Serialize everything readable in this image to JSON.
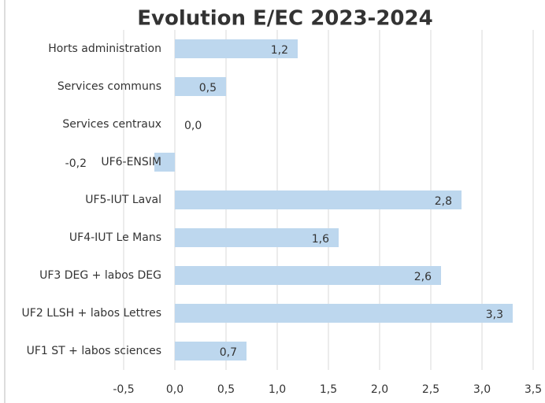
{
  "chart_data": {
    "type": "barh",
    "title": "Evolution E/EC 2023-2024",
    "categories": [
      "Horts administration",
      "Services communs",
      "Services centraux",
      "UF6-ENSIM",
      "UF5-IUT Laval",
      "UF4-IUT Le Mans",
      "UF3 DEG + labos DEG",
      "UF2 LLSH + labos Lettres",
      "UF1 ST + labos sciences"
    ],
    "values": [
      1.2,
      0.5,
      0.0,
      -0.2,
      2.8,
      1.6,
      2.6,
      3.3,
      0.7
    ],
    "value_labels": [
      "1,2",
      "0,5",
      "0,0",
      "-0,2",
      "2,8",
      "1,6",
      "2,6",
      "3,3",
      "0,7"
    ],
    "color": "#bdd7ee",
    "xlim": [
      -0.5,
      3.5
    ],
    "xticks": [
      {
        "value": -0.5,
        "label": "-0,5"
      },
      {
        "value": 0,
        "label": "0,0"
      },
      {
        "value": 0.5,
        "label": "0,5"
      },
      {
        "value": 1,
        "label": "1,0"
      },
      {
        "value": 1.5,
        "label": "1,5"
      },
      {
        "value": 2,
        "label": "2,0"
      },
      {
        "value": 2.5,
        "label": "2,5"
      },
      {
        "value": 3,
        "label": "3,0"
      },
      {
        "value": 3.5,
        "label": "3,5"
      }
    ],
    "grid": true
  }
}
